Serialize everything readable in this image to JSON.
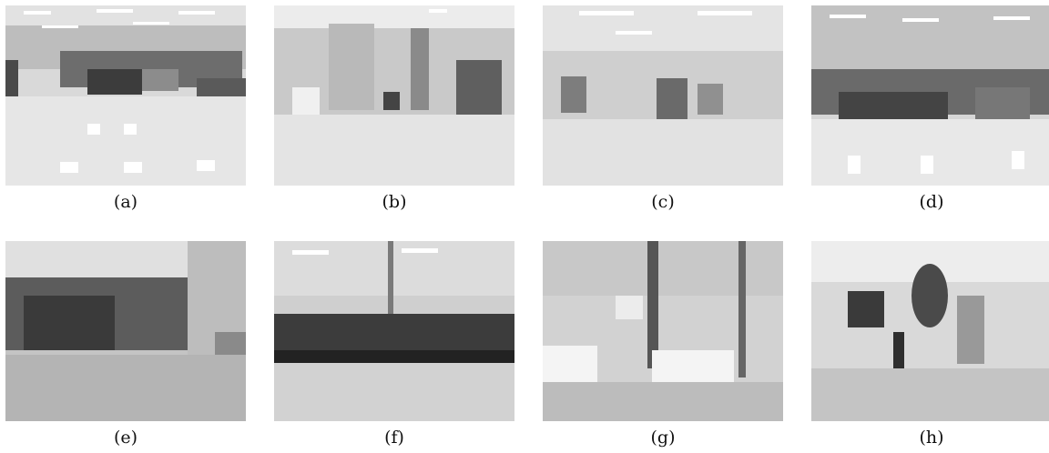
{
  "panels": [
    {
      "caption": "(a)"
    },
    {
      "caption": "(b)"
    },
    {
      "caption": "(c)"
    },
    {
      "caption": "(d)"
    },
    {
      "caption": "(e)"
    },
    {
      "caption": "(f)"
    },
    {
      "caption": "(g)"
    },
    {
      "caption": "(h)"
    }
  ]
}
